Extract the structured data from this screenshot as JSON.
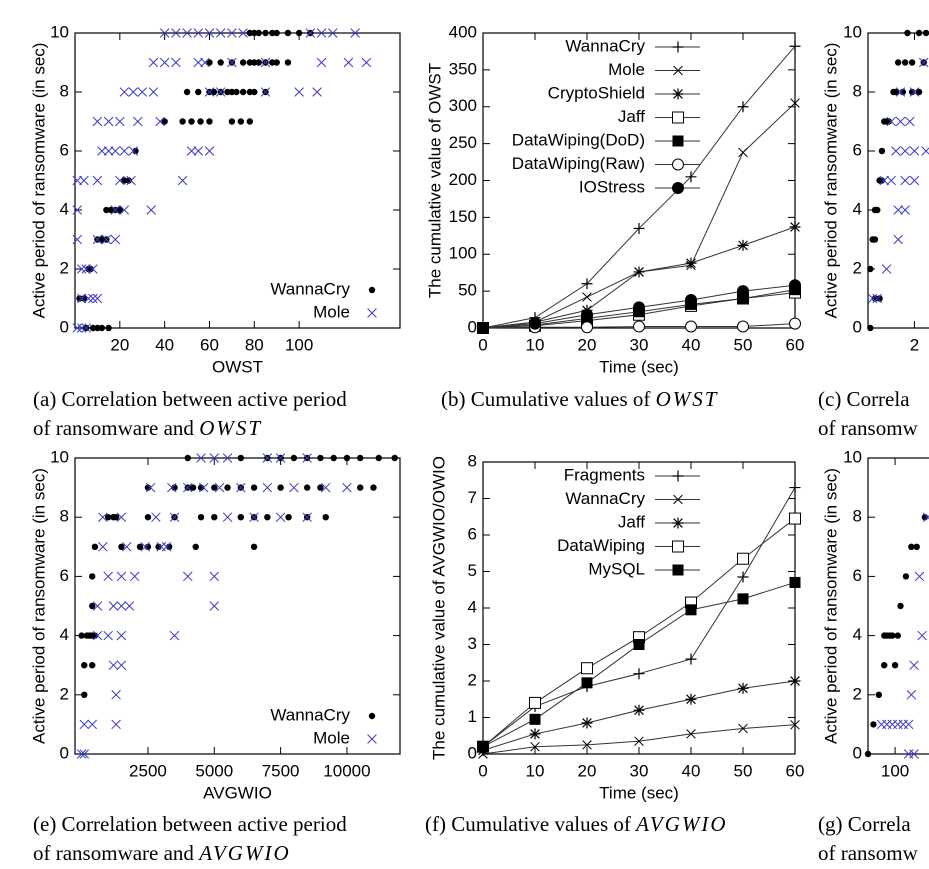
{
  "chart_data": [
    {
      "type": "scatter",
      "xlabel": "OWST",
      "ylabel": "Active period of ransomware (in sec)",
      "xlim": [
        0,
        145
      ],
      "xticks": [
        20,
        40,
        60,
        80,
        100
      ],
      "ylim": [
        0,
        10
      ],
      "yticks": [
        0,
        2,
        4,
        6,
        8,
        10
      ],
      "legend": "lower right",
      "caption": {
        "text": [
          "(a) Correlation between active period",
          "of ransomware and"
        ],
        "symbol": "OWST"
      },
      "series": [
        {
          "name": "WannaCry",
          "color": "#000000",
          "marker": "dot",
          "x": [
            5,
            8,
            10,
            12,
            15,
            2,
            4,
            6,
            7,
            10,
            12,
            14,
            14,
            16,
            18,
            20,
            22,
            24,
            27,
            40,
            48,
            52,
            56,
            60,
            70,
            74,
            78,
            50,
            55,
            60,
            62,
            65,
            68,
            70,
            72,
            75,
            78,
            80,
            85,
            60,
            65,
            70,
            75,
            78,
            80,
            82,
            85,
            88,
            90,
            95,
            78,
            80,
            82,
            85,
            88,
            90,
            95,
            100,
            105
          ],
          "y": [
            0,
            0,
            0,
            0,
            0,
            1,
            1,
            2,
            2,
            3,
            3,
            3,
            4,
            4,
            4,
            4,
            5,
            5,
            6,
            7,
            7,
            7,
            7,
            7,
            7,
            7,
            7,
            8,
            8,
            8,
            8,
            8,
            8,
            8,
            8,
            8,
            8,
            8,
            8,
            9,
            9,
            9,
            9,
            9,
            9,
            9,
            9,
            9,
            9,
            9,
            10,
            10,
            10,
            10,
            10,
            10,
            10,
            10,
            10
          ]
        },
        {
          "name": "Mole",
          "color": "#3a3acc",
          "marker": "x",
          "x": [
            1,
            3,
            5,
            3,
            6,
            8,
            10,
            3,
            5,
            8,
            1,
            10,
            14,
            18,
            1,
            18,
            22,
            34,
            1,
            4,
            10,
            20,
            25,
            48,
            12,
            15,
            18,
            22,
            26,
            52,
            55,
            60,
            10,
            15,
            20,
            28,
            38,
            22,
            26,
            30,
            35,
            60,
            65,
            85,
            100,
            108,
            35,
            40,
            45,
            55,
            58,
            70,
            85,
            110,
            122,
            130,
            40,
            45,
            50,
            55,
            60,
            65,
            70,
            75,
            105,
            110,
            115,
            125
          ],
          "y": [
            0,
            0,
            0,
            1,
            1,
            1,
            1,
            2,
            2,
            2,
            3,
            3,
            3,
            3,
            4,
            4,
            4,
            4,
            5,
            5,
            5,
            5,
            5,
            5,
            6,
            6,
            6,
            6,
            6,
            6,
            6,
            6,
            7,
            7,
            7,
            7,
            7,
            8,
            8,
            8,
            8,
            8,
            8,
            8,
            8,
            8,
            9,
            9,
            9,
            9,
            9,
            9,
            9,
            9,
            9,
            9,
            10,
            10,
            10,
            10,
            10,
            10,
            10,
            10,
            10,
            10,
            10,
            10
          ]
        }
      ]
    },
    {
      "type": "line",
      "xlabel": "Time (sec)",
      "ylabel": "The cumulative value of OWST",
      "x": [
        0,
        10,
        20,
        30,
        40,
        50,
        60
      ],
      "xlim": [
        0,
        60
      ],
      "xticks": [
        0,
        10,
        20,
        30,
        40,
        50,
        60
      ],
      "ylim": [
        0,
        400
      ],
      "yticks": [
        0,
        50,
        100,
        150,
        200,
        250,
        300,
        350,
        400
      ],
      "legend": "upper right",
      "caption": {
        "text": [
          "(b) Cumulative values of"
        ],
        "symbol": "OWST"
      },
      "series": [
        {
          "name": "WannaCry",
          "color": "#333333",
          "marker": "plus",
          "values": [
            0,
            14,
            60,
            135,
            205,
            300,
            382
          ]
        },
        {
          "name": "Mole",
          "color": "#333333",
          "marker": "x",
          "values": [
            0,
            8,
            42,
            76,
            85,
            238,
            305
          ]
        },
        {
          "name": "CryptoShield",
          "color": "#333333",
          "marker": "star",
          "values": [
            0,
            8,
            24,
            76,
            88,
            112,
            137
          ]
        },
        {
          "name": "Jaff",
          "color": "#333333",
          "marker": "square-open",
          "values": [
            0,
            3,
            10,
            18,
            30,
            40,
            48
          ]
        },
        {
          "name": "DataWiping(DoD)",
          "color": "#333333",
          "marker": "square",
          "values": [
            0,
            4,
            13,
            22,
            32,
            40,
            52
          ]
        },
        {
          "name": "DataWiping(Raw)",
          "color": "#333333",
          "marker": "circle-open",
          "values": [
            0,
            1,
            1,
            2,
            2,
            2,
            6
          ]
        },
        {
          "name": "IOStress",
          "color": "#333333",
          "marker": "circle",
          "values": [
            0,
            6,
            18,
            28,
            38,
            50,
            58
          ]
        }
      ]
    },
    {
      "type": "scatter",
      "ylabel": "Active period of ransomware (in sec)",
      "xlim": [
        0,
        140
      ],
      "xticks": [
        {
          "value": 20,
          "label": "2"
        }
      ],
      "ylim": [
        0,
        10
      ],
      "yticks": [
        0,
        2,
        4,
        6,
        8,
        10
      ],
      "caption": {
        "text": [
          "(c) Correla",
          "of ransomw"
        ]
      },
      "series": [
        {
          "color": "#000000",
          "marker": "dot",
          "x": [
            1,
            3,
            5,
            1,
            2,
            3,
            3,
            4,
            5,
            6,
            6,
            7,
            8,
            9,
            11,
            12,
            15,
            19,
            22,
            13,
            16,
            19,
            24,
            17,
            22,
            25
          ],
          "y": [
            0,
            1,
            1,
            2,
            3,
            3,
            4,
            4,
            5,
            5,
            6,
            7,
            7,
            7,
            8,
            8,
            8,
            8,
            8,
            9,
            9,
            9,
            9,
            10,
            10,
            10
          ]
        },
        {
          "color": "#3a3acc",
          "marker": "x",
          "x": [
            2,
            4,
            8,
            13,
            13,
            16,
            7,
            10,
            16,
            20,
            12,
            16,
            20,
            25,
            10,
            14,
            18,
            14,
            20,
            24
          ],
          "y": [
            1,
            1,
            2,
            3,
            4,
            4,
            5,
            5,
            5,
            5,
            6,
            6,
            6,
            6,
            7,
            7,
            7,
            8,
            8,
            9
          ]
        }
      ]
    },
    {
      "type": "scatter",
      "xlabel": "AVGWIO",
      "ylabel": "Active period of ransomware (in sec)",
      "xlim": [
        -250,
        12000
      ],
      "xticks": [
        2500,
        5000,
        7500,
        10000
      ],
      "ylim": [
        0,
        10
      ],
      "yticks": [
        0,
        2,
        4,
        6,
        8,
        10
      ],
      "legend": "lower right",
      "caption": {
        "text": [
          "(e) Correlation between active period",
          "of ransomware and"
        ],
        "symbol": "AVGWIO"
      },
      "series": [
        {
          "name": "WannaCry",
          "color": "#000000",
          "marker": "dot",
          "x": [
            100,
            100,
            400,
            0,
            200,
            300,
            400,
            500,
            400,
            400,
            500,
            1500,
            2200,
            2500,
            2900,
            3300,
            4300,
            6500,
            1000,
            1200,
            1300,
            2500,
            3500,
            4500,
            5000,
            6000,
            6500,
            7000,
            7800,
            8500,
            9200,
            2500,
            3500,
            4000,
            4200,
            4500,
            5000,
            5500,
            6000,
            6500,
            7500,
            8500,
            9000,
            10500,
            11000,
            4000,
            6000,
            7000,
            7500,
            8000,
            8500,
            9000,
            9500,
            10000,
            10500,
            11200,
            11800
          ],
          "y": [
            2,
            3,
            3,
            4,
            4,
            4,
            4,
            4,
            5,
            6,
            7,
            7,
            7,
            7,
            7,
            7,
            7,
            7,
            8,
            8,
            8,
            8,
            8,
            8,
            8,
            8,
            8,
            8,
            8,
            8,
            8,
            9,
            9,
            9,
            9,
            9,
            9,
            9,
            9,
            9,
            9,
            9,
            9,
            9,
            9,
            10,
            10,
            10,
            10,
            10,
            10,
            10,
            10,
            10,
            10,
            10,
            10
          ]
        },
        {
          "name": "Mole",
          "color": "#3a3acc",
          "marker": "x",
          "x": [
            0,
            100,
            100,
            400,
            1300,
            1300,
            1200,
            1500,
            600,
            1000,
            1500,
            3500,
            600,
            1200,
            1500,
            1800,
            5000,
            1000,
            1500,
            2000,
            4000,
            5000,
            800,
            1700,
            2400,
            3000,
            3200,
            800,
            1500,
            2800,
            3500,
            5500,
            6500,
            7500,
            8500,
            2600,
            3400,
            4000,
            4600,
            5200,
            6000,
            7000,
            8000,
            9200,
            10000,
            4500,
            5000,
            5500,
            7000,
            7500,
            8500
          ],
          "y": [
            0,
            0,
            1,
            1,
            1,
            2,
            3,
            3,
            4,
            4,
            4,
            4,
            5,
            5,
            5,
            5,
            5,
            6,
            6,
            6,
            6,
            6,
            7,
            7,
            7,
            7,
            7,
            8,
            8,
            8,
            8,
            8,
            8,
            8,
            8,
            9,
            9,
            9,
            9,
            9,
            9,
            9,
            9,
            9,
            9,
            10,
            10,
            10,
            10,
            10,
            10
          ]
        }
      ]
    },
    {
      "type": "line",
      "xlabel": "Time (sec)",
      "ylabel": "The cumulative value of AVGWIO/OWIO",
      "x": [
        0,
        10,
        20,
        30,
        40,
        50,
        60
      ],
      "xlim": [
        0,
        60
      ],
      "xticks": [
        0,
        10,
        20,
        30,
        40,
        50,
        60
      ],
      "ylim": [
        0,
        8
      ],
      "yticks": [
        0,
        1,
        2,
        3,
        4,
        5,
        6,
        7,
        8
      ],
      "legend": "upper right",
      "caption": {
        "text": [
          "(f) Cumulative values of"
        ],
        "symbol": "AVGWIO"
      },
      "series": [
        {
          "name": "Fragments",
          "color": "#333333",
          "marker": "plus",
          "values": [
            0.2,
            1.3,
            1.85,
            2.2,
            2.6,
            4.85,
            7.3
          ]
        },
        {
          "name": "WannaCry",
          "color": "#333333",
          "marker": "x",
          "values": [
            0,
            0.2,
            0.25,
            0.35,
            0.55,
            0.7,
            0.8
          ]
        },
        {
          "name": "Jaff",
          "color": "#333333",
          "marker": "star",
          "values": [
            0.1,
            0.55,
            0.85,
            1.2,
            1.5,
            1.8,
            2.0
          ]
        },
        {
          "name": "DataWiping",
          "color": "#333333",
          "marker": "square-open",
          "values": [
            0.2,
            1.4,
            2.35,
            3.2,
            4.15,
            5.35,
            6.45
          ]
        },
        {
          "name": "MySQL",
          "color": "#333333",
          "marker": "square",
          "values": [
            0.2,
            0.95,
            1.95,
            3.0,
            3.95,
            4.25,
            4.7
          ]
        }
      ]
    },
    {
      "type": "scatter",
      "ylabel": "Active period of ransomware (in sec)",
      "xlim": [
        0,
        12000
      ],
      "xticks": [
        {
          "value": 1000,
          "label": "100"
        }
      ],
      "ylim": [
        0,
        10
      ],
      "yticks": [
        0,
        2,
        4,
        6,
        8,
        10
      ],
      "caption": {
        "text": [
          "(g) Correla",
          "of ransomw"
        ]
      },
      "series": [
        {
          "color": "#000000",
          "marker": "dot",
          "x": [
            0,
            200,
            400,
            600,
            1000,
            600,
            700,
            800,
            900,
            1100,
            1200,
            1400,
            1600,
            1800,
            2100
          ],
          "y": [
            0,
            1,
            2,
            3,
            3,
            4,
            4,
            4,
            4,
            4,
            5,
            6,
            7,
            7,
            8
          ]
        },
        {
          "color": "#3a3acc",
          "marker": "x",
          "x": [
            500,
            700,
            900,
            1100,
            1300,
            1500,
            1500,
            1700,
            1600,
            1700,
            2000,
            1900,
            2200
          ],
          "y": [
            1,
            1,
            1,
            1,
            1,
            1,
            0,
            0,
            2,
            3,
            4,
            6,
            8
          ]
        }
      ]
    }
  ]
}
